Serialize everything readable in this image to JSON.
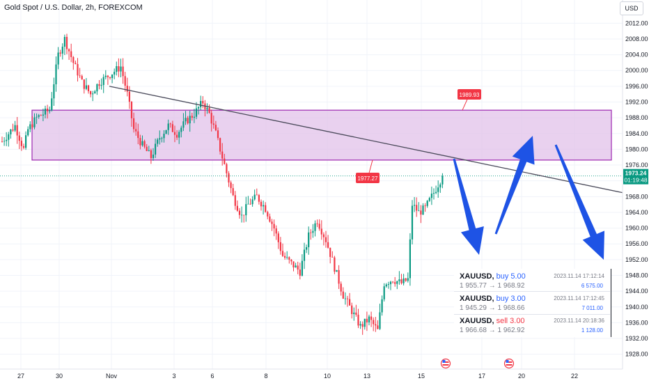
{
  "header": {
    "title": "Gold Spot / U.S. Dollar, 2h, FOREXCOM",
    "currency_button": "USD"
  },
  "chart_data": {
    "type": "candlestick",
    "ylim": [
      1926,
      2014
    ],
    "y_ticks": [
      1928,
      1932,
      1936,
      1940,
      1944,
      1948,
      1952,
      1956,
      1960,
      1964,
      1968,
      1972,
      1976,
      1980,
      1984,
      1988,
      1992,
      1996,
      2000,
      2004,
      2008,
      2012
    ],
    "x_ticks": [
      "27",
      "30",
      "Nov",
      "3",
      "6",
      "8",
      "10",
      "13",
      "15",
      "17",
      "20",
      "22"
    ],
    "waypoints": [
      [
        0,
        1982
      ],
      [
        6,
        1986
      ],
      [
        10,
        1980
      ],
      [
        12,
        1985
      ],
      [
        16,
        1988
      ],
      [
        22,
        1990
      ],
      [
        26,
        2004
      ],
      [
        29,
        2008
      ],
      [
        33,
        2002
      ],
      [
        37,
        1997
      ],
      [
        41,
        1994
      ],
      [
        45,
        1997
      ],
      [
        50,
        1999
      ],
      [
        55,
        2001
      ],
      [
        58,
        1994
      ],
      [
        61,
        1985
      ],
      [
        65,
        1981
      ],
      [
        69,
        1978
      ],
      [
        73,
        1983
      ],
      [
        77,
        1986
      ],
      [
        81,
        1984
      ],
      [
        85,
        1987
      ],
      [
        89,
        1989
      ],
      [
        93,
        1992
      ],
      [
        96,
        1989
      ],
      [
        99,
        1984
      ],
      [
        103,
        1976
      ],
      [
        107,
        1968
      ],
      [
        111,
        1963
      ],
      [
        114,
        1966
      ],
      [
        118,
        1968
      ],
      [
        122,
        1965
      ],
      [
        126,
        1960
      ],
      [
        130,
        1953
      ],
      [
        134,
        1951
      ],
      [
        138,
        1949
      ],
      [
        142,
        1958
      ],
      [
        146,
        1962
      ],
      [
        150,
        1957
      ],
      [
        154,
        1950
      ],
      [
        158,
        1943
      ],
      [
        162,
        1939
      ],
      [
        166,
        1935
      ],
      [
        170,
        1937
      ],
      [
        174,
        1934
      ],
      [
        177,
        1946
      ],
      [
        181,
        1947
      ],
      [
        185,
        1946
      ],
      [
        188,
        1947
      ],
      [
        190,
        1966
      ],
      [
        193,
        1964
      ],
      [
        196,
        1965
      ],
      [
        200,
        1969
      ],
      [
        204,
        1973.24
      ]
    ],
    "last_price": "1973.24",
    "countdown": "01:19:48",
    "zone": {
      "top": 1989.93,
      "bottom": 1977.27,
      "fill": "#e1c2ea",
      "stroke": "#9c27b0"
    },
    "zone_labels": {
      "top": "1989.93",
      "bottom": "1977.27"
    },
    "trendline": {
      "from": [
        1,
        1996
      ],
      "to": [
        2,
        1971
      ]
    },
    "colors": {
      "up": "#089981",
      "down": "#f23645",
      "arrow": "#1e53e5",
      "trend": "#4a4a5a",
      "grid": "#f0f3fa"
    }
  },
  "trades": [
    {
      "symbol": "XAUUSD,",
      "side": "buy",
      "label": "buy 5.00",
      "prices": "1 955.77 → 1 968.92",
      "time": "2023.11.14 17:12:14",
      "amount": "6 575.00"
    },
    {
      "symbol": "XAUUSD,",
      "side": "buy",
      "label": "buy 3.00",
      "prices": "1 945.29 → 1 968.66",
      "time": "2023.11.14 17:12:45",
      "amount": "7 011.00"
    },
    {
      "symbol": "XAUUSD,",
      "side": "sell",
      "label": "sell 3.00",
      "prices": "1 966.68 → 1 962.92",
      "time": "2023.11.14 20:18:36",
      "amount": "1 128.00"
    }
  ]
}
